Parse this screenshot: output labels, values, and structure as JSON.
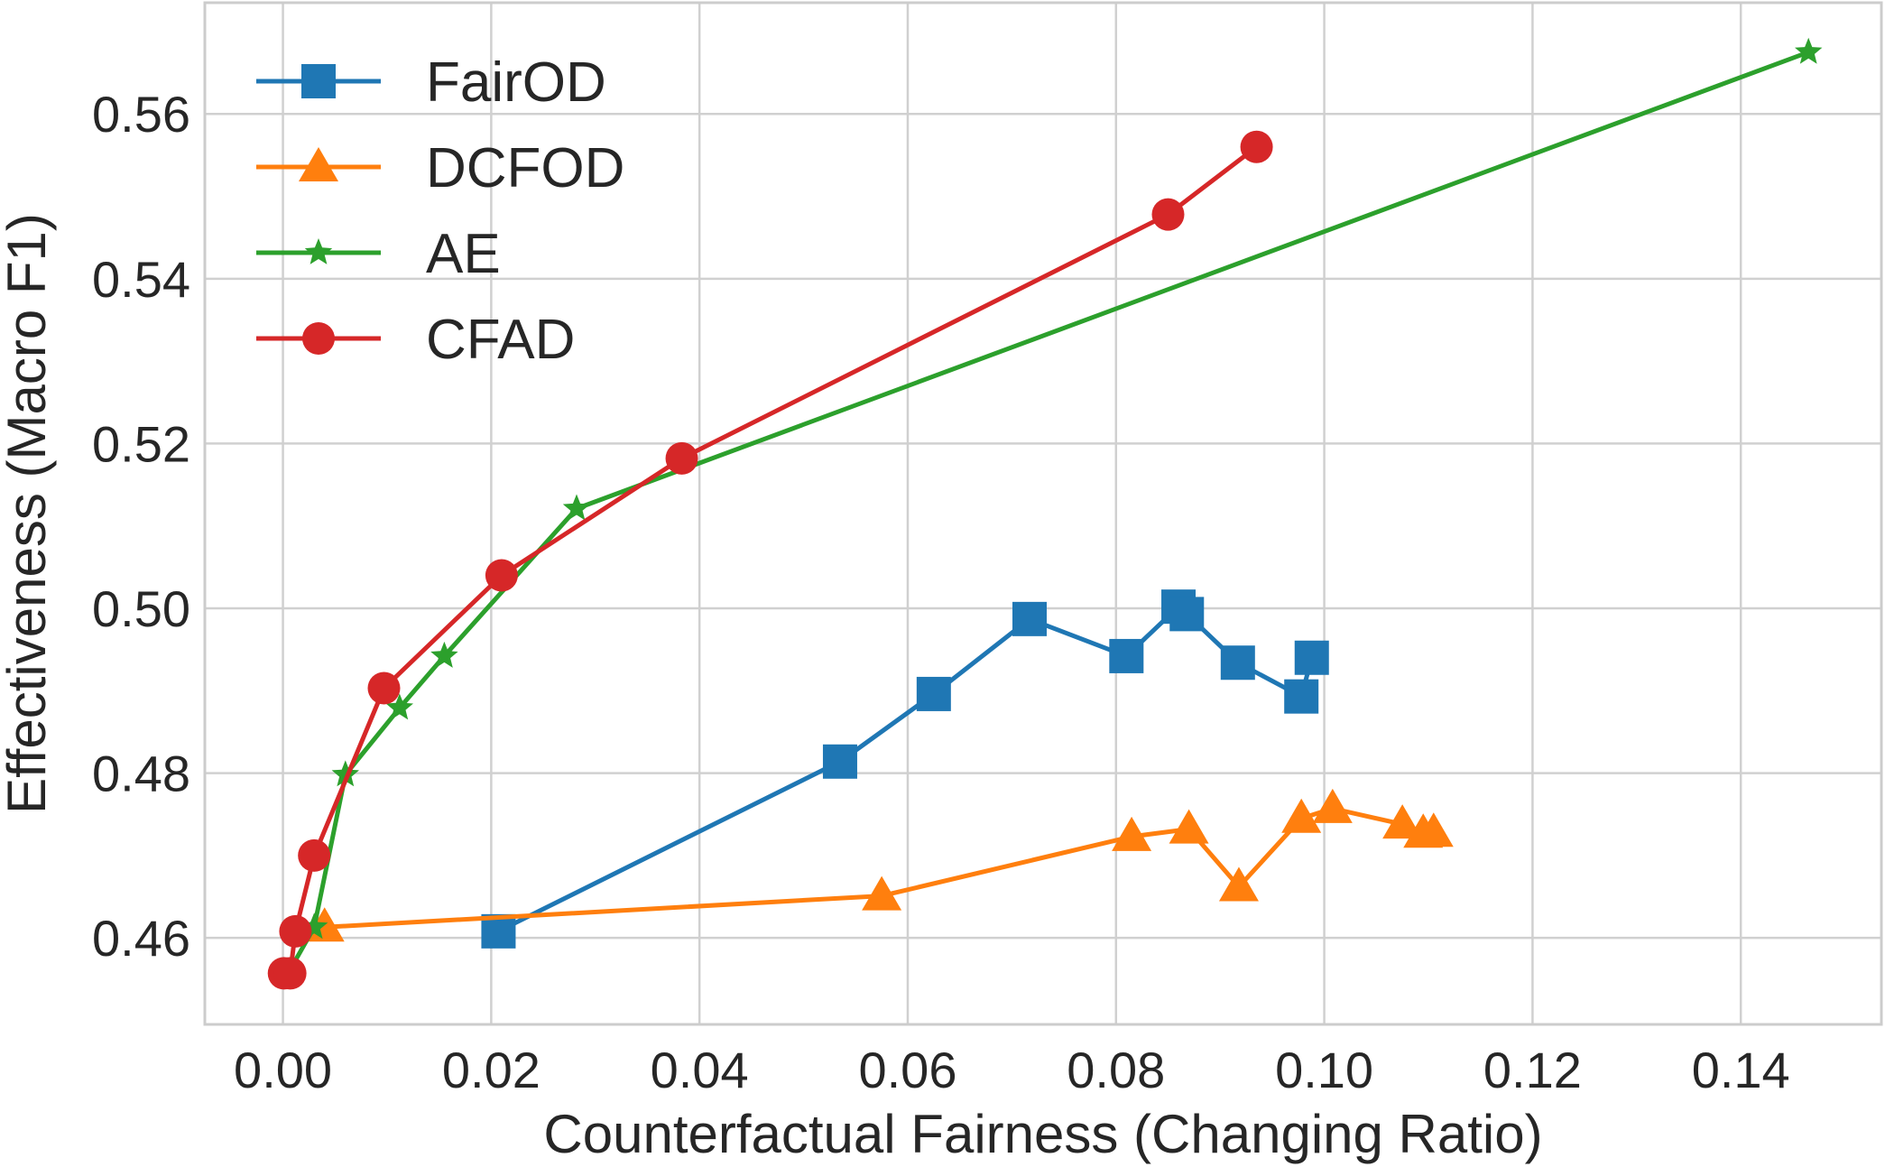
{
  "chart_data": {
    "type": "line",
    "title": "",
    "xlabel": "Counterfactual Fairness (Changing Ratio)",
    "ylabel": "Effectiveness (Macro F1)",
    "xlim": [
      -0.0075,
      0.1535
    ],
    "ylim": [
      0.4495,
      0.5735
    ],
    "xticks": [
      0.0,
      0.02,
      0.04,
      0.06,
      0.08,
      0.1,
      0.12,
      0.14
    ],
    "xtick_labels": [
      "0.00",
      "0.02",
      "0.04",
      "0.06",
      "0.08",
      "0.10",
      "0.12",
      "0.14"
    ],
    "yticks": [
      0.46,
      0.48,
      0.5,
      0.52,
      0.54,
      0.56
    ],
    "ytick_labels": [
      "0.46",
      "0.48",
      "0.50",
      "0.52",
      "0.54",
      "0.56"
    ],
    "grid": true,
    "legend_position": "top-left",
    "series": [
      {
        "name": "FairOD",
        "color": "#1f77b4",
        "marker": "square",
        "x": [
          0.0207,
          0.0535,
          0.0625,
          0.0717,
          0.081,
          0.086,
          0.0868,
          0.0917,
          0.0978,
          0.0988
        ],
        "y": [
          0.4608,
          0.4814,
          0.4896,
          0.4987,
          0.4942,
          0.5002,
          0.4993,
          0.4934,
          0.4893,
          0.494
        ]
      },
      {
        "name": "DCFOD",
        "color": "#ff7f0e",
        "marker": "triangle",
        "x": [
          0.004,
          0.0575,
          0.0815,
          0.087,
          0.0918,
          0.0978,
          0.1008,
          0.1075,
          0.1095,
          0.1105
        ],
        "y": [
          0.4613,
          0.4651,
          0.4723,
          0.4732,
          0.4662,
          0.4745,
          0.4757,
          0.4738,
          0.4727,
          0.4728
        ]
      },
      {
        "name": "AE",
        "color": "#2ca02c",
        "marker": "star",
        "x": [
          0.0005,
          0.003,
          0.006,
          0.0112,
          0.0155,
          0.0282,
          0.1465
        ],
        "y": [
          0.4557,
          0.4613,
          0.4798,
          0.4879,
          0.4942,
          0.5121,
          0.5675
        ]
      },
      {
        "name": "CFAD",
        "color": "#d62728",
        "marker": "circle",
        "x": [
          0.0001,
          0.0007,
          0.0012,
          0.003,
          0.0097,
          0.021,
          0.0383,
          0.085,
          0.0935
        ],
        "y": [
          0.4557,
          0.4557,
          0.4608,
          0.47,
          0.4903,
          0.504,
          0.5182,
          0.5478,
          0.556
        ]
      }
    ]
  }
}
